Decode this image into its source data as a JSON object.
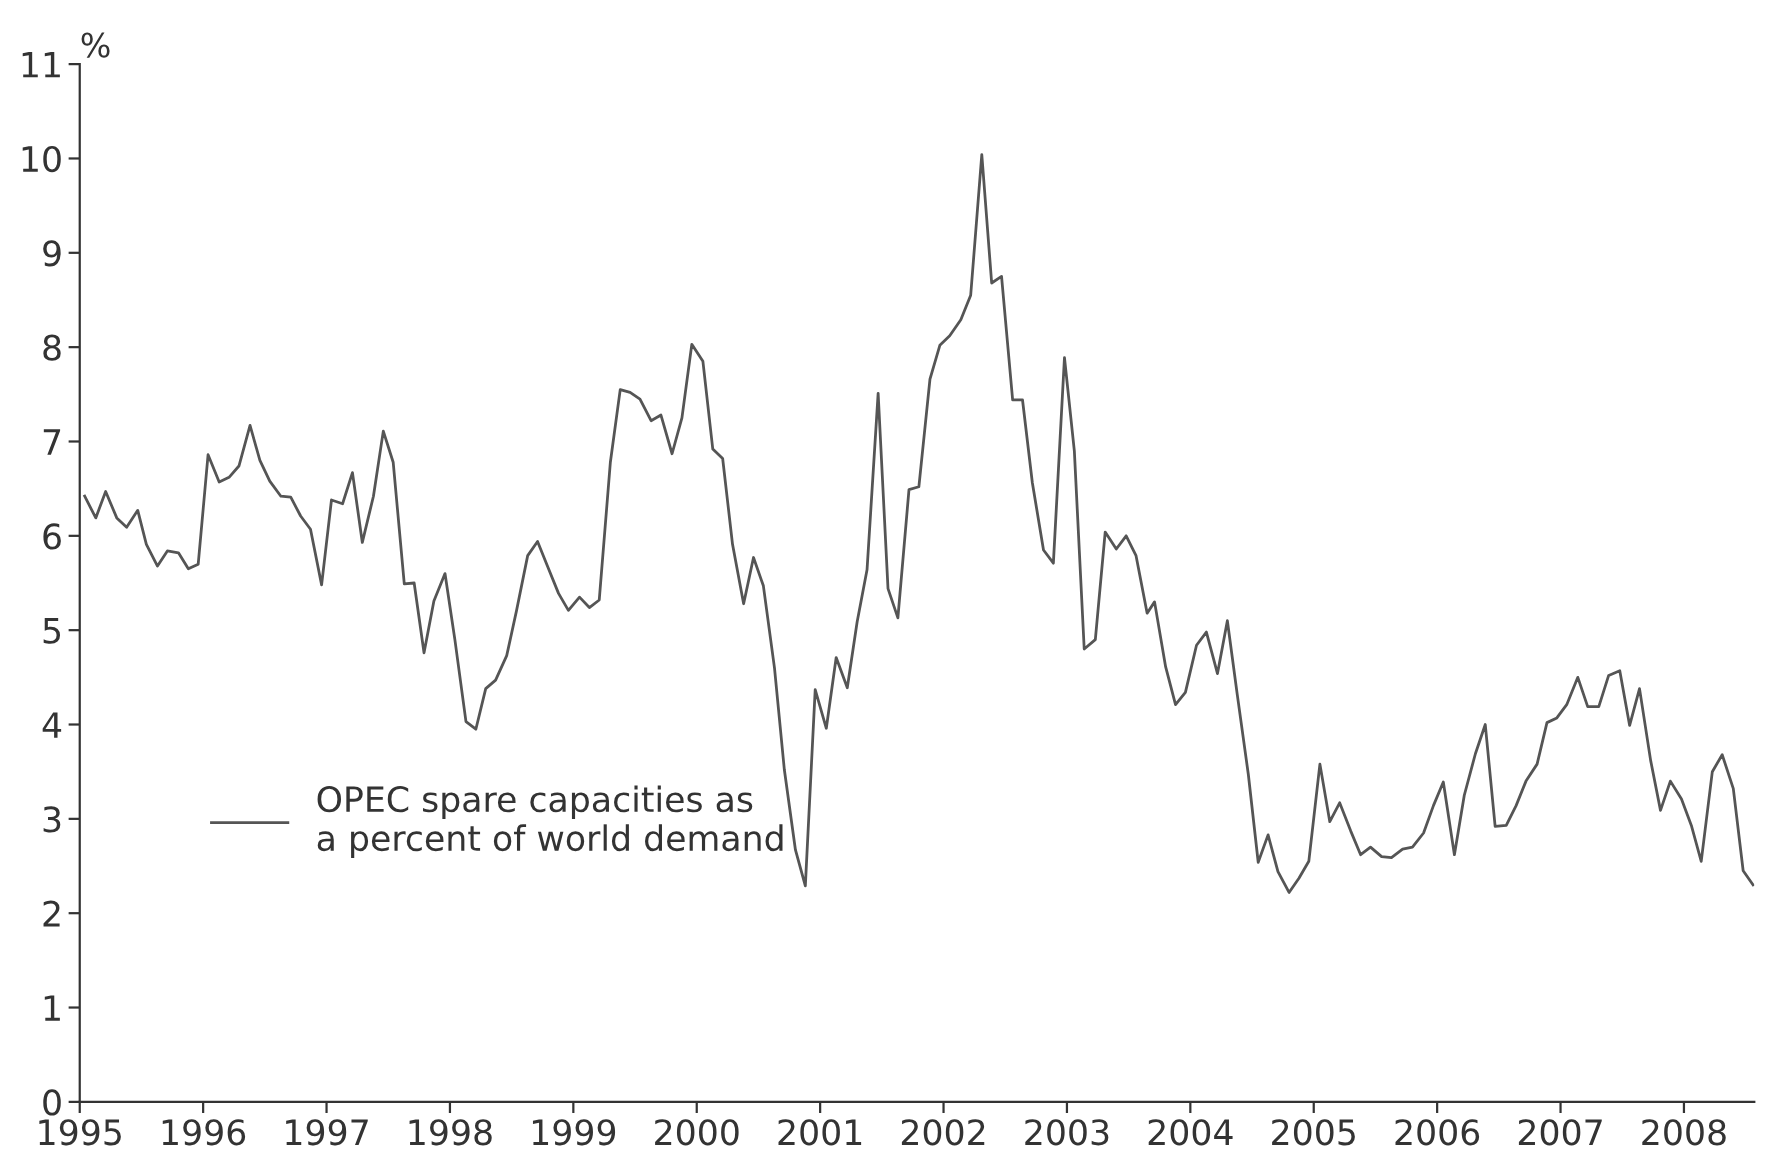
{
  "chart_data": {
    "type": "line",
    "ylabel": "%",
    "xlim": [
      1995,
      2008.57
    ],
    "xticks": [
      1995,
      1996,
      1997,
      1998,
      1999,
      2000,
      2001,
      2002,
      2003,
      2004,
      2005,
      2006,
      2007,
      2008
    ],
    "ylim": [
      0,
      11
    ],
    "yticks": [
      0,
      1,
      2,
      3,
      4,
      5,
      6,
      7,
      8,
      9,
      10,
      11
    ],
    "grid": false,
    "legend": "left",
    "marker": "none",
    "line_style": "solid",
    "series": [
      {
        "name": "OPEC spare capacities as\na percent of world demand",
        "color": "#555555",
        "x": [
          1995.04,
          1995.13,
          1995.21,
          1995.3,
          1995.38,
          1995.47,
          1995.54,
          1995.63,
          1995.71,
          1995.8,
          1995.88,
          1995.96,
          1996.04,
          1996.13,
          1996.21,
          1996.29,
          1996.38,
          1996.46,
          1996.54,
          1996.63,
          1996.71,
          1996.79,
          1996.87,
          1996.96,
          1997.04,
          1997.13,
          1997.21,
          1997.29,
          1997.38,
          1997.46,
          1997.54,
          1997.63,
          1997.71,
          1997.79,
          1997.87,
          1997.96,
          1998.04,
          1998.13,
          1998.21,
          1998.29,
          1998.37,
          1998.46,
          1998.54,
          1998.63,
          1998.71,
          1998.79,
          1998.88,
          1998.96,
          1999.05,
          1999.13,
          1999.21,
          1999.3,
          1999.38,
          1999.46,
          1999.54,
          1999.63,
          1999.71,
          1999.8,
          1999.88,
          1999.96,
          2000.05,
          2000.13,
          2000.21,
          2000.29,
          2000.38,
          2000.46,
          2000.54,
          2000.63,
          2000.71,
          2000.8,
          2000.88,
          2000.96,
          2001.05,
          2001.13,
          2001.22,
          2001.3,
          2001.38,
          2001.47,
          2001.55,
          2001.63,
          2001.72,
          2001.8,
          2001.89,
          2001.97,
          2002.05,
          2002.14,
          2002.22,
          2002.31,
          2002.39,
          2002.47,
          2002.56,
          2002.64,
          2002.72,
          2002.81,
          2002.89,
          2002.98,
          2003.06,
          2003.14,
          2003.23,
          2003.31,
          2003.4,
          2003.48,
          2003.56,
          2003.65,
          2003.71,
          2003.8,
          2003.88,
          2003.96,
          2004.05,
          2004.13,
          2004.22,
          2004.3,
          2004.38,
          2004.47,
          2004.55,
          2004.63,
          2004.71,
          2004.8,
          2004.88,
          2004.96,
          2005.05,
          2005.13,
          2005.21,
          2005.3,
          2005.38,
          2005.46,
          2005.55,
          2005.63,
          2005.72,
          2005.8,
          2005.89,
          2005.97,
          2006.05,
          2006.14,
          2006.22,
          2006.31,
          2006.39,
          2006.47,
          2006.56,
          2006.64,
          2006.72,
          2006.81,
          2006.89,
          2006.97,
          2007.05,
          2007.14,
          2007.22,
          2007.31,
          2007.39,
          2007.48,
          2007.56,
          2007.64,
          2007.73,
          2007.81,
          2007.89,
          2007.98,
          2008.06,
          2008.14,
          2008.23,
          2008.31,
          2008.4,
          2008.48,
          2008.56
        ],
        "values": [
          6.42,
          6.19,
          6.47,
          6.19,
          6.09,
          6.27,
          5.91,
          5.68,
          5.84,
          5.82,
          5.65,
          5.7,
          6.86,
          6.57,
          6.62,
          6.74,
          7.17,
          6.8,
          6.58,
          6.42,
          6.41,
          6.21,
          6.07,
          5.48,
          6.38,
          6.34,
          6.67,
          5.93,
          6.42,
          7.11,
          6.78,
          5.49,
          5.5,
          4.76,
          5.31,
          5.6,
          4.9,
          4.03,
          3.95,
          4.38,
          4.47,
          4.73,
          5.21,
          5.79,
          5.94,
          5.68,
          5.39,
          5.21,
          5.35,
          5.24,
          5.32,
          6.78,
          7.55,
          7.52,
          7.45,
          7.22,
          7.28,
          6.87,
          7.25,
          8.03,
          7.85,
          6.92,
          6.82,
          5.91,
          5.28,
          5.77,
          5.47,
          4.6,
          3.52,
          2.67,
          2.29,
          4.37,
          3.96,
          4.71,
          4.39,
          5.09,
          5.64,
          7.51,
          5.44,
          5.13,
          6.49,
          6.52,
          7.66,
          8.02,
          8.12,
          8.29,
          8.55,
          10.04,
          8.68,
          8.75,
          7.44,
          7.44,
          6.56,
          5.85,
          5.71,
          7.89,
          6.9,
          4.8,
          4.9,
          6.04,
          5.86,
          6.0,
          5.79,
          5.18,
          5.3,
          4.61,
          4.21,
          4.34,
          4.84,
          4.98,
          4.54,
          5.1,
          4.32,
          3.47,
          2.54,
          2.83,
          2.44,
          2.22,
          2.37,
          2.55,
          3.58,
          2.97,
          3.17,
          2.87,
          2.62,
          2.7,
          2.6,
          2.59,
          2.68,
          2.7,
          2.85,
          3.14,
          3.39,
          2.62,
          3.25,
          3.69,
          4.0,
          2.92,
          2.93,
          3.14,
          3.4,
          3.58,
          4.02,
          4.07,
          4.21,
          4.5,
          4.19,
          4.19,
          4.52,
          4.57,
          3.99,
          4.38,
          3.62,
          3.09,
          3.4,
          3.21,
          2.93,
          2.55,
          3.5,
          3.68,
          3.32,
          2.45,
          2.3
        ]
      }
    ]
  }
}
